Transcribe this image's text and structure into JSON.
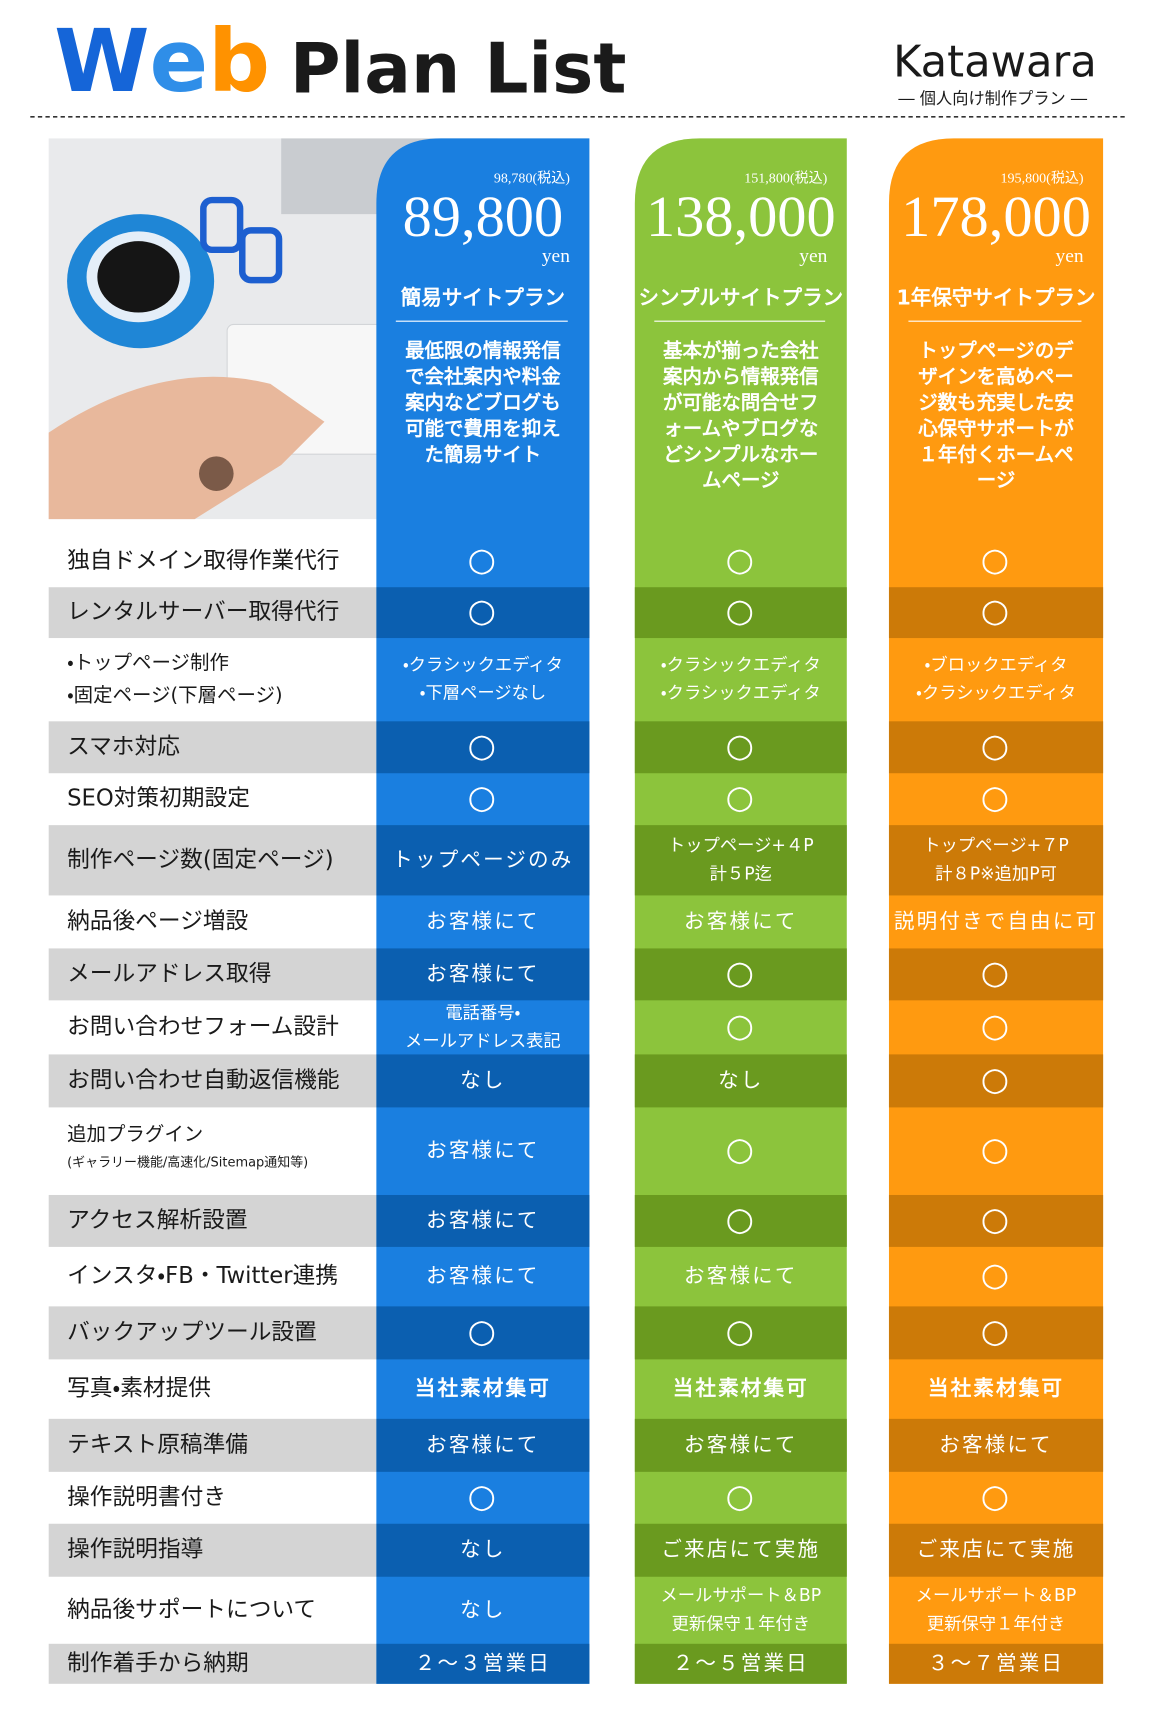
{
  "header": {
    "title_web": "Web",
    "title_rest": "Plan List",
    "brand": "Katawara",
    "brand_sub": "― 個人向け制作プラン ―"
  },
  "plans": [
    {
      "tax_price": "98,780(税込)",
      "price": "89,800",
      "unit": "yen",
      "name": "簡易サイトプラン",
      "description": [
        "最低限の情報発信",
        "で会社案内や料金",
        "案内などブログも",
        "可能で費用を抑え",
        "た簡易サイト"
      ]
    },
    {
      "tax_price": "151,800(税込)",
      "price": "138,000",
      "unit": "yen",
      "name": "シンプルサイトプラン",
      "description": [
        "基本が揃った会社",
        "案内から情報発信",
        "が可能な問合せフ",
        "ォームやブログな",
        "どシンプルなホー",
        "ムページ"
      ]
    },
    {
      "tax_price": "195,800(税込)",
      "price": "178,000",
      "unit": "yen",
      "name": "1年保守サイトプラン",
      "description": [
        "トップページのデ",
        "ザインを高めペー",
        "ジ数も充実した安",
        "心保守サポートが",
        "１年付くホームペ",
        "ージ"
      ]
    }
  ],
  "rows": [
    {
      "label": [
        "独自ドメイン取得作業代行"
      ],
      "cells": [
        [
          "○"
        ],
        [
          "○"
        ],
        [
          "○"
        ]
      ]
    },
    {
      "label": [
        "レンタルサーバー取得代行"
      ],
      "cells": [
        [
          "○"
        ],
        [
          "○"
        ],
        [
          "○"
        ]
      ]
    },
    {
      "label": [
        "・トップページ制作",
        "・固定ページ(下層ページ)"
      ],
      "cells": [
        [
          "・クラシックエディタ",
          "・下層ページなし"
        ],
        [
          "・クラシックエディタ",
          "・クラシックエディタ"
        ],
        [
          "・ブロックエディタ",
          "・クラシックエディタ"
        ]
      ]
    },
    {
      "label": [
        "スマホ対応"
      ],
      "cells": [
        [
          "○"
        ],
        [
          "○"
        ],
        [
          "○"
        ]
      ]
    },
    {
      "label": [
        "SEO対策初期設定"
      ],
      "cells": [
        [
          "○"
        ],
        [
          "○"
        ],
        [
          "○"
        ]
      ]
    },
    {
      "label": [
        "制作ページ数(固定ページ)"
      ],
      "cells": [
        [
          "トップページのみ"
        ],
        [
          "トップページ+４P",
          "計５P迄"
        ],
        [
          "トップページ+７P",
          "計８P※追加P可"
        ]
      ]
    },
    {
      "label": [
        "納品後ページ増設"
      ],
      "cells": [
        [
          "お客様にて"
        ],
        [
          "お客様にて"
        ],
        [
          "説明付きで自由に可"
        ]
      ]
    },
    {
      "label": [
        "メールアドレス取得"
      ],
      "cells": [
        [
          "お客様にて"
        ],
        [
          "○"
        ],
        [
          "○"
        ]
      ]
    },
    {
      "label": [
        "お問い合わせフォーム設計"
      ],
      "cells": [
        [
          "電話番号・",
          "メールアドレス表記"
        ],
        [
          "○"
        ],
        [
          "○"
        ]
      ]
    },
    {
      "label": [
        "お問い合わせ自動返信機能"
      ],
      "cells": [
        [
          "なし"
        ],
        [
          "なし"
        ],
        [
          "○"
        ]
      ]
    },
    {
      "label": [
        "追加プラグイン",
        "(ギャラリー機能/高速化/Sitemap通知等)"
      ],
      "cells": [
        [
          "お客様にて"
        ],
        [
          "○"
        ],
        [
          "○"
        ]
      ]
    },
    {
      "label": [
        "アクセス解析設置"
      ],
      "cells": [
        [
          "お客様にて"
        ],
        [
          "○"
        ],
        [
          "○"
        ]
      ]
    },
    {
      "label": [
        "インスタ・FB・Twitter連携"
      ],
      "cells": [
        [
          "お客様にて"
        ],
        [
          "お客様にて"
        ],
        [
          "○"
        ]
      ]
    },
    {
      "label": [
        "バックアップツール設置"
      ],
      "cells": [
        [
          "○"
        ],
        [
          "○"
        ],
        [
          "○"
        ]
      ]
    },
    {
      "label": [
        "写真・素材提供"
      ],
      "cells": [
        [
          "当社素材集可"
        ],
        [
          "当社素材集可"
        ],
        [
          "当社素材集可"
        ]
      ]
    },
    {
      "label": [
        "テキスト原稿準備"
      ],
      "cells": [
        [
          "お客様にて"
        ],
        [
          "お客様にて"
        ],
        [
          "お客様にて"
        ]
      ]
    },
    {
      "label": [
        "操作説明書付き"
      ],
      "cells": [
        [
          "○"
        ],
        [
          "○"
        ],
        [
          "○"
        ]
      ]
    },
    {
      "label": [
        "操作説明指導"
      ],
      "cells": [
        [
          "なし"
        ],
        [
          "ご来店にて実施"
        ],
        [
          "ご来店にて実施"
        ]
      ]
    },
    {
      "label": [
        "納品後サポートについて"
      ],
      "cells": [
        [
          "なし"
        ],
        [
          "メールサポート＆BP",
          "更新保守１年付き"
        ],
        [
          "メールサポート＆BP",
          "更新保守１年付き"
        ]
      ]
    },
    {
      "label": [
        "制作着手から納期"
      ],
      "cells": [
        [
          "２～３営業日"
        ],
        [
          "２～５営業日"
        ],
        [
          "３～７営業日"
        ]
      ]
    }
  ]
}
